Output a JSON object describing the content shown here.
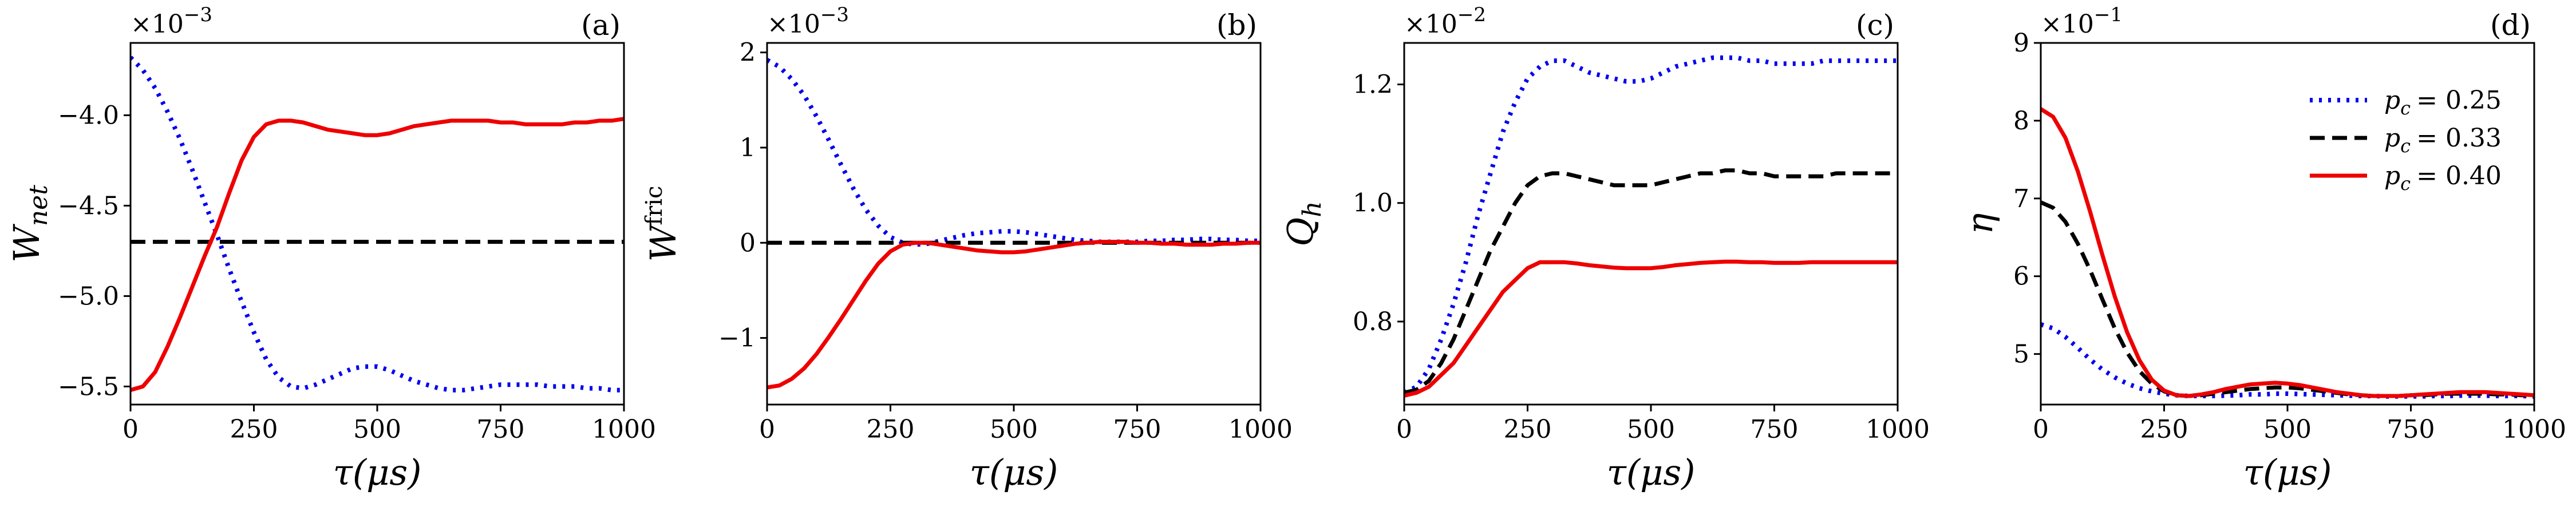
{
  "chart_data": [
    {
      "type": "line",
      "panel_label": "(a)",
      "ylabel_main": "W",
      "ylabel_sub": "net",
      "ylabel_sup": "",
      "xlabel": "τ(μs)",
      "multiplier": "×10",
      "multiplier_exp": "−3",
      "xlim": [
        0,
        1000
      ],
      "ylim": [
        -5.6,
        -3.6
      ],
      "xticks": [
        0,
        250,
        500,
        750,
        1000
      ],
      "xtick_labels": [
        "0",
        "250",
        "500",
        "750",
        "1000"
      ],
      "yticks": [
        -5.5,
        -5.0,
        -4.5,
        -4.0
      ],
      "ytick_labels": [
        "−5.5",
        "−5.0",
        "−4.5",
        "−4.0"
      ],
      "series": [
        {
          "name": "p_c = 0.25",
          "style": "dotted",
          "color": "#0000ee",
          "x": [
            0,
            25,
            50,
            75,
            100,
            125,
            150,
            175,
            200,
            225,
            250,
            275,
            300,
            325,
            350,
            375,
            400,
            425,
            450,
            475,
            500,
            525,
            550,
            575,
            600,
            625,
            650,
            675,
            700,
            725,
            750,
            775,
            800,
            825,
            850,
            875,
            900,
            925,
            950,
            975,
            1000
          ],
          "y": [
            -3.68,
            -3.75,
            -3.85,
            -3.98,
            -4.13,
            -4.3,
            -4.48,
            -4.66,
            -4.85,
            -5.03,
            -5.2,
            -5.35,
            -5.45,
            -5.5,
            -5.51,
            -5.49,
            -5.46,
            -5.43,
            -5.4,
            -5.39,
            -5.39,
            -5.41,
            -5.44,
            -5.47,
            -5.49,
            -5.51,
            -5.52,
            -5.52,
            -5.51,
            -5.5,
            -5.49,
            -5.49,
            -5.49,
            -5.49,
            -5.5,
            -5.5,
            -5.5,
            -5.51,
            -5.51,
            -5.52,
            -5.52
          ]
        },
        {
          "name": "p_c = 0.33",
          "style": "dashed",
          "color": "#000000",
          "x": [
            0,
            1000
          ],
          "y": [
            -4.7,
            -4.7
          ]
        },
        {
          "name": "p_c = 0.40",
          "style": "solid",
          "color": "#ee0000",
          "x": [
            0,
            25,
            50,
            75,
            100,
            125,
            150,
            175,
            200,
            225,
            250,
            275,
            300,
            325,
            350,
            375,
            400,
            425,
            450,
            475,
            500,
            525,
            550,
            575,
            600,
            625,
            650,
            675,
            700,
            725,
            750,
            775,
            800,
            825,
            850,
            875,
            900,
            925,
            950,
            975,
            1000
          ],
          "y": [
            -5.52,
            -5.5,
            -5.42,
            -5.28,
            -5.12,
            -4.95,
            -4.78,
            -4.62,
            -4.43,
            -4.25,
            -4.12,
            -4.05,
            -4.03,
            -4.03,
            -4.04,
            -4.06,
            -4.08,
            -4.09,
            -4.1,
            -4.11,
            -4.11,
            -4.1,
            -4.08,
            -4.06,
            -4.05,
            -4.04,
            -4.03,
            -4.03,
            -4.03,
            -4.03,
            -4.04,
            -4.04,
            -4.05,
            -4.05,
            -4.05,
            -4.05,
            -4.04,
            -4.04,
            -4.03,
            -4.03,
            -4.02
          ]
        }
      ]
    },
    {
      "type": "line",
      "panel_label": "(b)",
      "ylabel_main": "W",
      "ylabel_sub": "",
      "ylabel_sup": "fric",
      "xlabel": "τ(μs)",
      "multiplier": "×10",
      "multiplier_exp": "−3",
      "xlim": [
        0,
        1000
      ],
      "ylim": [
        -1.7,
        2.1
      ],
      "xticks": [
        0,
        250,
        500,
        750,
        1000
      ],
      "xtick_labels": [
        "0",
        "250",
        "500",
        "750",
        "1000"
      ],
      "yticks": [
        -1,
        0,
        1,
        2
      ],
      "ytick_labels": [
        "−1",
        "0",
        "1",
        "2"
      ],
      "series": [
        {
          "name": "p_c = 0.25",
          "style": "dotted",
          "color": "#0000ee",
          "x": [
            0,
            25,
            50,
            75,
            100,
            125,
            150,
            175,
            200,
            225,
            250,
            275,
            300,
            325,
            350,
            375,
            400,
            425,
            450,
            475,
            500,
            525,
            550,
            575,
            600,
            625,
            650,
            675,
            700,
            725,
            750,
            775,
            800,
            825,
            850,
            875,
            900,
            925,
            950,
            975,
            1000
          ],
          "y": [
            1.92,
            1.85,
            1.72,
            1.55,
            1.33,
            1.08,
            0.82,
            0.57,
            0.35,
            0.18,
            0.06,
            0.0,
            -0.02,
            -0.01,
            0.02,
            0.05,
            0.08,
            0.1,
            0.11,
            0.12,
            0.12,
            0.11,
            0.09,
            0.07,
            0.05,
            0.03,
            0.02,
            0.01,
            0.01,
            0.01,
            0.01,
            0.02,
            0.02,
            0.03,
            0.03,
            0.04,
            0.04,
            0.03,
            0.03,
            0.02,
            0.02
          ]
        },
        {
          "name": "p_c = 0.33",
          "style": "dashed",
          "color": "#000000",
          "x": [
            0,
            1000
          ],
          "y": [
            0,
            0
          ]
        },
        {
          "name": "p_c = 0.40",
          "style": "solid",
          "color": "#ee0000",
          "x": [
            0,
            25,
            50,
            75,
            100,
            125,
            150,
            175,
            200,
            225,
            250,
            275,
            300,
            325,
            350,
            375,
            400,
            425,
            450,
            475,
            500,
            525,
            550,
            575,
            600,
            625,
            650,
            675,
            700,
            725,
            750,
            775,
            800,
            825,
            850,
            875,
            900,
            925,
            950,
            975,
            1000
          ],
          "y": [
            -1.52,
            -1.5,
            -1.43,
            -1.32,
            -1.17,
            -0.99,
            -0.8,
            -0.6,
            -0.4,
            -0.22,
            -0.09,
            -0.02,
            0.0,
            0.0,
            -0.02,
            -0.04,
            -0.06,
            -0.08,
            -0.09,
            -0.1,
            -0.1,
            -0.09,
            -0.07,
            -0.05,
            -0.03,
            -0.01,
            0.0,
            0.01,
            0.01,
            0.01,
            0.0,
            0.0,
            -0.01,
            -0.01,
            -0.02,
            -0.02,
            -0.02,
            -0.01,
            -0.01,
            0.0,
            0.0
          ]
        }
      ]
    },
    {
      "type": "line",
      "panel_label": "(c)",
      "ylabel_main": "Q",
      "ylabel_sub": "h",
      "ylabel_sup": "",
      "xlabel": "τ(μs)",
      "multiplier": "×10",
      "multiplier_exp": "−2",
      "xlim": [
        0,
        1000
      ],
      "ylim": [
        0.66,
        1.27
      ],
      "xticks": [
        0,
        250,
        500,
        750,
        1000
      ],
      "xtick_labels": [
        "0",
        "250",
        "500",
        "750",
        "1000"
      ],
      "yticks": [
        0.8,
        1.0,
        1.2
      ],
      "ytick_labels": [
        "0.8",
        "1.0",
        "1.2"
      ],
      "series": [
        {
          "name": "p_c = 0.25",
          "style": "dotted",
          "color": "#0000ee",
          "x": [
            0,
            25,
            50,
            75,
            100,
            125,
            150,
            175,
            200,
            225,
            250,
            275,
            300,
            325,
            350,
            375,
            400,
            425,
            450,
            475,
            500,
            525,
            550,
            575,
            600,
            625,
            650,
            675,
            700,
            725,
            750,
            775,
            800,
            825,
            850,
            875,
            900,
            925,
            950,
            975,
            1000
          ],
          "y": [
            0.68,
            0.69,
            0.72,
            0.77,
            0.83,
            0.9,
            0.98,
            1.05,
            1.12,
            1.17,
            1.21,
            1.23,
            1.24,
            1.24,
            1.23,
            1.22,
            1.215,
            1.21,
            1.205,
            1.205,
            1.21,
            1.22,
            1.23,
            1.235,
            1.24,
            1.245,
            1.245,
            1.245,
            1.24,
            1.24,
            1.235,
            1.235,
            1.235,
            1.235,
            1.24,
            1.24,
            1.24,
            1.24,
            1.24,
            1.24,
            1.24
          ]
        },
        {
          "name": "p_c = 0.33",
          "style": "dashed",
          "color": "#000000",
          "x": [
            0,
            25,
            50,
            75,
            100,
            125,
            150,
            175,
            200,
            225,
            250,
            275,
            300,
            325,
            350,
            375,
            400,
            425,
            450,
            475,
            500,
            525,
            550,
            575,
            600,
            625,
            650,
            675,
            700,
            725,
            750,
            775,
            800,
            825,
            850,
            875,
            900,
            925,
            950,
            975,
            1000
          ],
          "y": [
            0.68,
            0.685,
            0.7,
            0.73,
            0.77,
            0.82,
            0.87,
            0.92,
            0.96,
            1.0,
            1.03,
            1.045,
            1.05,
            1.05,
            1.045,
            1.04,
            1.035,
            1.03,
            1.03,
            1.03,
            1.03,
            1.035,
            1.04,
            1.045,
            1.05,
            1.05,
            1.055,
            1.055,
            1.05,
            1.05,
            1.045,
            1.045,
            1.045,
            1.045,
            1.045,
            1.05,
            1.05,
            1.05,
            1.05,
            1.05,
            1.05
          ]
        },
        {
          "name": "p_c = 0.40",
          "style": "solid",
          "color": "#ee0000",
          "x": [
            0,
            25,
            50,
            75,
            100,
            125,
            150,
            175,
            200,
            225,
            250,
            275,
            300,
            325,
            350,
            375,
            400,
            425,
            450,
            475,
            500,
            525,
            550,
            575,
            600,
            625,
            650,
            675,
            700,
            725,
            750,
            775,
            800,
            825,
            850,
            875,
            900,
            925,
            950,
            975,
            1000
          ],
          "y": [
            0.675,
            0.68,
            0.69,
            0.71,
            0.73,
            0.76,
            0.79,
            0.82,
            0.85,
            0.87,
            0.89,
            0.9,
            0.9,
            0.9,
            0.898,
            0.895,
            0.893,
            0.891,
            0.89,
            0.89,
            0.89,
            0.892,
            0.895,
            0.897,
            0.899,
            0.9,
            0.901,
            0.901,
            0.9,
            0.9,
            0.899,
            0.899,
            0.899,
            0.9,
            0.9,
            0.9,
            0.9,
            0.9,
            0.9,
            0.9,
            0.9
          ]
        }
      ]
    },
    {
      "type": "line",
      "panel_label": "(d)",
      "ylabel_main": "η",
      "ylabel_sub": "",
      "ylabel_sup": "",
      "xlabel": "τ(μs)",
      "multiplier": "×10",
      "multiplier_exp": "−1",
      "xlim": [
        0,
        1000
      ],
      "ylim": [
        4.35,
        9.0
      ],
      "xticks": [
        0,
        250,
        500,
        750,
        1000
      ],
      "xtick_labels": [
        "0",
        "250",
        "500",
        "750",
        "1000"
      ],
      "yticks": [
        5,
        6,
        7,
        8,
        9
      ],
      "ytick_labels": [
        "5",
        "6",
        "7",
        "8",
        "9"
      ],
      "legend": {
        "placement": "top-right",
        "entries": [
          "p_c = 0.25",
          "p_c = 0.33",
          "p_c = 0.40"
        ]
      },
      "series": [
        {
          "name": "p_c = 0.25",
          "label_main": "p",
          "label_sub": "c",
          "label_value": "= 0.25",
          "style": "dotted",
          "color": "#0000ee",
          "x": [
            0,
            25,
            50,
            75,
            100,
            125,
            150,
            175,
            200,
            225,
            250,
            275,
            300,
            325,
            350,
            375,
            400,
            425,
            450,
            475,
            500,
            525,
            550,
            575,
            600,
            625,
            650,
            675,
            700,
            725,
            750,
            775,
            800,
            825,
            850,
            875,
            900,
            925,
            950,
            975,
            1000
          ],
          "y": [
            5.38,
            5.33,
            5.22,
            5.08,
            4.93,
            4.8,
            4.7,
            4.62,
            4.56,
            4.52,
            4.49,
            4.47,
            4.46,
            4.46,
            4.46,
            4.465,
            4.47,
            4.48,
            4.48,
            4.49,
            4.49,
            4.485,
            4.48,
            4.475,
            4.47,
            4.465,
            4.46,
            4.46,
            4.455,
            4.455,
            4.455,
            4.455,
            4.46,
            4.46,
            4.465,
            4.465,
            4.465,
            4.46,
            4.46,
            4.46,
            4.455
          ]
        },
        {
          "name": "p_c = 0.33",
          "label_main": "p",
          "label_sub": "c",
          "label_value": "= 0.33",
          "style": "dashed",
          "color": "#000000",
          "x": [
            0,
            25,
            50,
            75,
            100,
            125,
            150,
            175,
            200,
            225,
            250,
            275,
            300,
            325,
            350,
            375,
            400,
            425,
            450,
            475,
            500,
            525,
            550,
            575,
            600,
            625,
            650,
            675,
            700,
            725,
            750,
            775,
            800,
            825,
            850,
            875,
            900,
            925,
            950,
            975,
            1000
          ],
          "y": [
            6.95,
            6.88,
            6.7,
            6.42,
            6.08,
            5.7,
            5.33,
            5.02,
            4.78,
            4.62,
            4.52,
            4.47,
            4.46,
            4.47,
            4.49,
            4.51,
            4.53,
            4.55,
            4.56,
            4.57,
            4.57,
            4.56,
            4.54,
            4.52,
            4.5,
            4.48,
            4.47,
            4.46,
            4.46,
            4.46,
            4.47,
            4.47,
            4.48,
            4.49,
            4.49,
            4.49,
            4.49,
            4.48,
            4.48,
            4.47,
            4.47
          ]
        },
        {
          "name": "p_c = 0.40",
          "label_main": "p",
          "label_sub": "c",
          "label_value": "= 0.40",
          "style": "solid",
          "color": "#ee0000",
          "x": [
            0,
            25,
            50,
            75,
            100,
            125,
            150,
            175,
            200,
            225,
            250,
            275,
            300,
            325,
            350,
            375,
            400,
            425,
            450,
            475,
            500,
            525,
            550,
            575,
            600,
            625,
            650,
            675,
            700,
            725,
            750,
            775,
            800,
            825,
            850,
            875,
            900,
            925,
            950,
            975,
            1000
          ],
          "y": [
            8.15,
            8.05,
            7.78,
            7.35,
            6.83,
            6.27,
            5.74,
            5.28,
            4.92,
            4.67,
            4.53,
            4.47,
            4.46,
            4.48,
            4.51,
            4.55,
            4.58,
            4.61,
            4.62,
            4.63,
            4.62,
            4.6,
            4.57,
            4.54,
            4.51,
            4.49,
            4.47,
            4.46,
            4.46,
            4.46,
            4.47,
            4.48,
            4.49,
            4.5,
            4.51,
            4.51,
            4.51,
            4.5,
            4.49,
            4.48,
            4.47
          ]
        }
      ]
    }
  ]
}
